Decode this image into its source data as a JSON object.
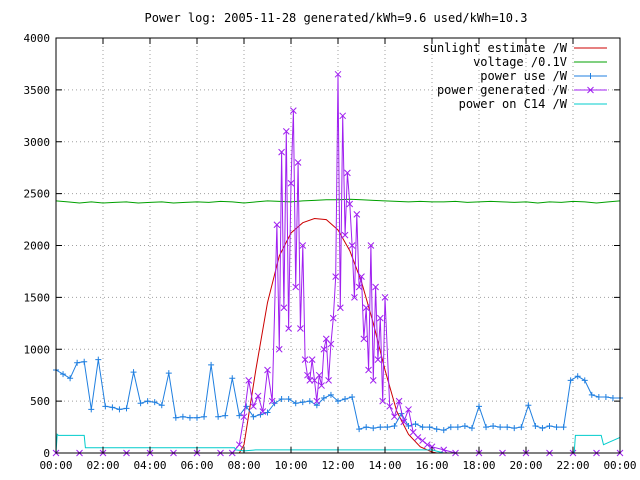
{
  "chart_data": {
    "type": "line",
    "title": "Power log: 2005-11-28 generated/kWh=9.6 used/kWh=10.3",
    "xlabel": "",
    "ylabel": "",
    "xlim": [
      0,
      24
    ],
    "ylim": [
      0,
      4000
    ],
    "x_ticks": [
      "00:00",
      "02:00",
      "04:00",
      "06:00",
      "08:00",
      "10:00",
      "12:00",
      "14:00",
      "16:00",
      "18:00",
      "20:00",
      "22:00",
      "00:00"
    ],
    "y_ticks": [
      "0",
      "500",
      "1000",
      "1500",
      "2000",
      "2500",
      "3000",
      "3500",
      "4000"
    ],
    "grid": true,
    "legend_position": "top-right",
    "x_unit": "hour of day",
    "series": [
      {
        "name": "sunlight estimate /W",
        "color": "#cc0000",
        "style": "line",
        "x": [
          7.8,
          8.0,
          8.5,
          9.0,
          9.5,
          10.0,
          10.5,
          11.0,
          11.5,
          12.0,
          12.5,
          13.0,
          13.5,
          14.0,
          14.5,
          15.0,
          15.5,
          16.0,
          16.2
        ],
        "y": [
          0,
          80,
          800,
          1450,
          1900,
          2120,
          2220,
          2260,
          2250,
          2150,
          1950,
          1650,
          1250,
          800,
          400,
          180,
          60,
          10,
          0
        ]
      },
      {
        "name": "voltage /0.1V",
        "color": "#00a000",
        "style": "line",
        "x": [
          0,
          0.5,
          1.0,
          1.5,
          2.0,
          2.5,
          3.0,
          3.5,
          4.0,
          4.5,
          5.0,
          5.5,
          6.0,
          6.5,
          7.0,
          7.5,
          8.0,
          8.5,
          9.0,
          9.5,
          10.0,
          10.5,
          11.0,
          11.5,
          12.0,
          12.5,
          13.0,
          13.5,
          14.0,
          14.5,
          15.0,
          15.5,
          16.0,
          16.5,
          17.0,
          17.5,
          18.0,
          18.5,
          19.0,
          19.5,
          20.0,
          20.5,
          21.0,
          21.5,
          22.0,
          22.5,
          23.0,
          23.5,
          24.0
        ],
        "y": [
          2430,
          2420,
          2410,
          2420,
          2410,
          2415,
          2420,
          2410,
          2415,
          2420,
          2410,
          2415,
          2420,
          2415,
          2425,
          2420,
          2410,
          2420,
          2430,
          2425,
          2420,
          2430,
          2435,
          2440,
          2440,
          2445,
          2440,
          2435,
          2430,
          2425,
          2420,
          2425,
          2420,
          2420,
          2425,
          2415,
          2420,
          2425,
          2420,
          2415,
          2420,
          2410,
          2420,
          2415,
          2425,
          2420,
          2410,
          2420,
          2430
        ]
      },
      {
        "name": "power use /W",
        "color": "#1f7fe0",
        "style": "line-plus",
        "x": [
          0.0,
          0.3,
          0.6,
          0.9,
          1.2,
          1.5,
          1.8,
          2.1,
          2.4,
          2.7,
          3.0,
          3.3,
          3.6,
          3.9,
          4.2,
          4.5,
          4.8,
          5.1,
          5.4,
          5.7,
          6.0,
          6.3,
          6.6,
          6.9,
          7.2,
          7.5,
          7.8,
          8.1,
          8.4,
          8.7,
          9.0,
          9.3,
          9.6,
          9.9,
          10.2,
          10.5,
          10.8,
          11.1,
          11.4,
          11.7,
          12.0,
          12.3,
          12.6,
          12.9,
          13.2,
          13.5,
          13.8,
          14.1,
          14.4,
          14.7,
          15.0,
          15.3,
          15.6,
          15.9,
          16.2,
          16.5,
          16.8,
          17.1,
          17.4,
          17.7,
          18.0,
          18.3,
          18.6,
          18.9,
          19.2,
          19.5,
          19.8,
          20.1,
          20.4,
          20.7,
          21.0,
          21.3,
          21.6,
          21.9,
          22.2,
          22.5,
          22.8,
          23.1,
          23.4,
          23.7,
          24.0
        ],
        "y": [
          800,
          760,
          720,
          870,
          880,
          420,
          900,
          450,
          440,
          420,
          430,
          780,
          480,
          500,
          490,
          460,
          770,
          340,
          350,
          340,
          340,
          350,
          850,
          350,
          360,
          720,
          360,
          450,
          350,
          370,
          390,
          480,
          520,
          520,
          480,
          490,
          500,
          460,
          530,
          560,
          500,
          520,
          540,
          230,
          250,
          240,
          250,
          250,
          260,
          380,
          260,
          280,
          250,
          250,
          230,
          220,
          250,
          250,
          260,
          240,
          450,
          250,
          260,
          250,
          250,
          240,
          250,
          460,
          260,
          240,
          260,
          250,
          250,
          700,
          740,
          700,
          560,
          540,
          540,
          530,
          530
        ]
      },
      {
        "name": "power generated /W",
        "color": "#a020f0",
        "style": "line-x",
        "x": [
          0.0,
          1.0,
          2.0,
          3.0,
          4.0,
          5.0,
          6.0,
          7.0,
          7.5,
          7.8,
          8.0,
          8.2,
          8.4,
          8.6,
          8.8,
          9.0,
          9.2,
          9.4,
          9.5,
          9.6,
          9.7,
          9.8,
          9.9,
          10.0,
          10.1,
          10.2,
          10.3,
          10.4,
          10.5,
          10.6,
          10.7,
          10.8,
          10.9,
          11.0,
          11.1,
          11.2,
          11.3,
          11.4,
          11.5,
          11.6,
          11.7,
          11.8,
          11.9,
          12.0,
          12.1,
          12.2,
          12.3,
          12.4,
          12.5,
          12.6,
          12.7,
          12.8,
          12.9,
          13.0,
          13.1,
          13.2,
          13.3,
          13.4,
          13.5,
          13.6,
          13.7,
          13.8,
          13.9,
          14.0,
          14.2,
          14.4,
          14.6,
          14.8,
          15.0,
          15.2,
          15.4,
          15.6,
          15.8,
          16.0,
          16.5,
          17.0,
          18.0,
          19.0,
          20.0,
          21.0,
          22.0,
          23.0,
          24.0
        ],
        "y": [
          0,
          0,
          0,
          0,
          0,
          0,
          0,
          0,
          0,
          80,
          350,
          700,
          450,
          550,
          400,
          800,
          500,
          2200,
          1000,
          2900,
          1400,
          3100,
          1200,
          2600,
          3300,
          1600,
          2800,
          1200,
          2000,
          900,
          750,
          700,
          900,
          700,
          500,
          750,
          650,
          1000,
          1100,
          700,
          1050,
          1300,
          1700,
          3650,
          1400,
          3250,
          2100,
          2700,
          2400,
          2000,
          1500,
          2300,
          1600,
          1700,
          1100,
          1400,
          800,
          2000,
          700,
          1600,
          900,
          1300,
          500,
          1500,
          450,
          350,
          500,
          300,
          420,
          200,
          150,
          120,
          80,
          60,
          30,
          0,
          0,
          0,
          0,
          0,
          0,
          0,
          0
        ]
      },
      {
        "name": "power on C14 /W",
        "color": "#00cccc",
        "style": "line",
        "x": [
          0.0,
          0.05,
          0.1,
          1.2,
          1.25,
          7.6,
          7.65,
          8.0,
          8.5,
          9.0,
          10.0,
          12.0,
          14.0,
          15.5,
          16.0,
          16.5,
          22.0,
          22.05,
          22.1,
          23.2,
          23.3,
          24.0
        ],
        "y": [
          0,
          180,
          170,
          170,
          50,
          50,
          30,
          20,
          30,
          30,
          30,
          30,
          30,
          30,
          30,
          0,
          0,
          0,
          170,
          170,
          80,
          150
        ]
      }
    ]
  }
}
